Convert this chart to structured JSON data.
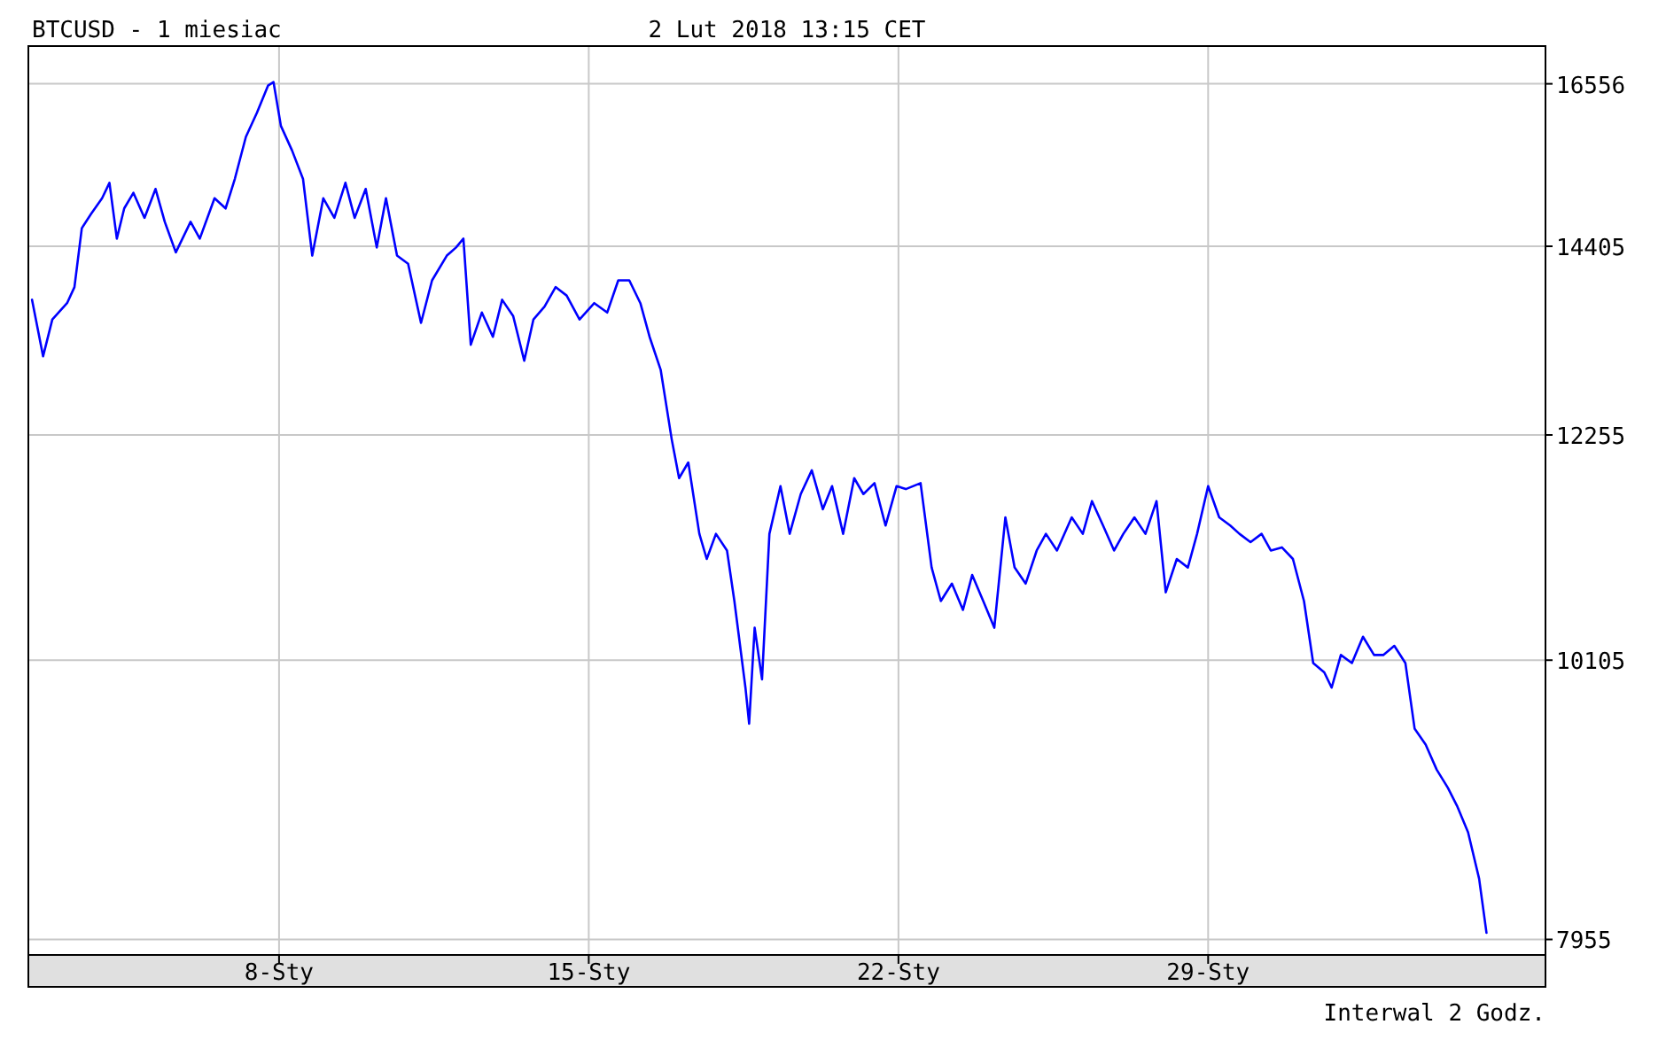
{
  "chart_data": {
    "type": "line",
    "title": "BTCUSD - 1 miesiac",
    "subtitle": "2 Lut 2018 13:15 CET",
    "annotations": [
      "Interwal 2 Godz."
    ],
    "log": true,
    "grid": true,
    "xlim": [
      "2018-01-02T08:00",
      "2018-02-05T15:00"
    ],
    "xticks": [
      {
        "value": "2018-01-08",
        "label": "8-Sty"
      },
      {
        "value": "2018-01-15",
        "label": "15-Sty"
      },
      {
        "value": "2018-01-22",
        "label": "22-Sty"
      },
      {
        "value": "2018-01-29",
        "label": "29-Sty"
      }
    ],
    "ylim": [
      7850,
      17100
    ],
    "yticks": [
      7955,
      10105,
      12255,
      14405,
      16556
    ],
    "series": [
      {
        "color": "#0000ff",
        "x": [
          "2018-01-02T10:00",
          "2018-01-02T16:00",
          "2018-01-02T21:00",
          "2018-01-03T05:00",
          "2018-01-03T09:00",
          "2018-01-03T13:00",
          "2018-01-03T18:00",
          "2018-01-04T00:00",
          "2018-01-04T04:00",
          "2018-01-04T08:00",
          "2018-01-04T12:00",
          "2018-01-04T17:00",
          "2018-01-04T23:00",
          "2018-01-05T05:00",
          "2018-01-05T10:00",
          "2018-01-05T16:00",
          "2018-01-06T00:00",
          "2018-01-06T05:00",
          "2018-01-06T13:00",
          "2018-01-06T19:00",
          "2018-01-07T00:00",
          "2018-01-07T06:00",
          "2018-01-07T12:00",
          "2018-01-07T18:00",
          "2018-01-07T21:00",
          "2018-01-08T01:00",
          "2018-01-08T07:00",
          "2018-01-08T13:00",
          "2018-01-08T18:00",
          "2018-01-09T00:00",
          "2018-01-09T06:00",
          "2018-01-09T12:00",
          "2018-01-09T17:00",
          "2018-01-09T23:00",
          "2018-01-10T05:00",
          "2018-01-10T10:00",
          "2018-01-10T16:00",
          "2018-01-10T22:00",
          "2018-01-11T05:00",
          "2018-01-11T11:00",
          "2018-01-11T19:00",
          "2018-01-12T00:00",
          "2018-01-12T04:00",
          "2018-01-12T08:00",
          "2018-01-12T14:00",
          "2018-01-12T20:00",
          "2018-01-13T01:00",
          "2018-01-13T07:00",
          "2018-01-13T13:00",
          "2018-01-13T18:00",
          "2018-01-14T00:00",
          "2018-01-14T06:00",
          "2018-01-14T12:00",
          "2018-01-14T19:00",
          "2018-01-15T03:00",
          "2018-01-15T10:00",
          "2018-01-15T16:00",
          "2018-01-15T22:00",
          "2018-01-16T04:00",
          "2018-01-16T09:00",
          "2018-01-16T15:00",
          "2018-01-16T21:00",
          "2018-01-17T01:00",
          "2018-01-17T06:00",
          "2018-01-17T12:00",
          "2018-01-17T16:00",
          "2018-01-17T21:00",
          "2018-01-18T03:00",
          "2018-01-18T07:00",
          "2018-01-18T13:00",
          "2018-01-18T15:00",
          "2018-01-18T18:00",
          "2018-01-18T22:00",
          "2018-01-19T02:00",
          "2018-01-19T08:00",
          "2018-01-19T13:00",
          "2018-01-19T19:00",
          "2018-01-20T01:00",
          "2018-01-20T07:00",
          "2018-01-20T12:00",
          "2018-01-20T18:00",
          "2018-01-21T00:00",
          "2018-01-21T05:00",
          "2018-01-21T11:00",
          "2018-01-21T17:00",
          "2018-01-21T23:00",
          "2018-01-22T04:00",
          "2018-01-22T12:00",
          "2018-01-22T18:00",
          "2018-01-22T23:00",
          "2018-01-23T05:00",
          "2018-01-23T11:00",
          "2018-01-23T16:00",
          "2018-01-23T22:00",
          "2018-01-24T04:00",
          "2018-01-24T10:00",
          "2018-01-24T15:00",
          "2018-01-24T21:00",
          "2018-01-25T03:00",
          "2018-01-25T08:00",
          "2018-01-25T14:00",
          "2018-01-25T22:00",
          "2018-01-26T04:00",
          "2018-01-26T09:00",
          "2018-01-26T15:00",
          "2018-01-26T21:00",
          "2018-01-27T02:00",
          "2018-01-27T08:00",
          "2018-01-27T14:00",
          "2018-01-27T20:00",
          "2018-01-28T01:00",
          "2018-01-28T07:00",
          "2018-01-28T13:00",
          "2018-01-28T18:00",
          "2018-01-29T00:00",
          "2018-01-29T06:00",
          "2018-01-29T12:00",
          "2018-01-29T17:00",
          "2018-01-29T23:00",
          "2018-01-30T05:00",
          "2018-01-30T10:00",
          "2018-01-30T16:00",
          "2018-01-30T22:00",
          "2018-01-31T04:00",
          "2018-01-31T09:00",
          "2018-01-31T15:00",
          "2018-01-31T19:00",
          "2018-02-01T00:00",
          "2018-02-01T06:00",
          "2018-02-01T12:00",
          "2018-02-01T18:00",
          "2018-02-01T23:00",
          "2018-02-02T05:00",
          "2018-02-02T11:00",
          "2018-02-02T16:00",
          "2018-02-02T22:00",
          "2018-02-03T04:00",
          "2018-02-03T10:00",
          "2018-02-03T15:00",
          "2018-02-03T21:00",
          "2018-02-04T03:00",
          "2018-02-04T07:00"
        ],
        "values": [
          13760,
          13110,
          13530,
          13720,
          13910,
          14630,
          14810,
          15010,
          15210,
          14500,
          14880,
          15080,
          14760,
          15130,
          14710,
          14330,
          14710,
          14500,
          15010,
          14880,
          15260,
          15820,
          16150,
          16530,
          16580,
          15970,
          15640,
          15260,
          14290,
          15010,
          14760,
          15210,
          14760,
          15130,
          14390,
          15010,
          14290,
          14190,
          13490,
          13990,
          14290,
          14390,
          14500,
          13240,
          13610,
          13330,
          13760,
          13570,
          13060,
          13530,
          13680,
          13910,
          13810,
          13530,
          13720,
          13610,
          13990,
          13990,
          13720,
          13330,
          12960,
          12210,
          11810,
          11970,
          11260,
          11020,
          11260,
          11100,
          10630,
          9870,
          9570,
          10390,
          9940,
          11260,
          11730,
          11260,
          11650,
          11890,
          11500,
          11730,
          11260,
          11810,
          11650,
          11760,
          11340,
          11730,
          11700,
          11760,
          10940,
          10630,
          10790,
          10550,
          10870,
          10630,
          10390,
          11420,
          10940,
          10790,
          11100,
          11260,
          11100,
          11420,
          11260,
          11580,
          11340,
          11100,
          11260,
          11420,
          11260,
          11580,
          10710,
          11020,
          10940,
          11260,
          11730,
          11420,
          11340,
          11260,
          11180,
          11260,
          11100,
          11130,
          11020,
          10630,
          10080,
          10000,
          9870,
          10150,
          10080,
          10310,
          10150,
          10150,
          10230,
          10080,
          9530,
          9400,
          9200,
          9060,
          8920,
          8720,
          8380,
          8000
        ]
      }
    ]
  }
}
